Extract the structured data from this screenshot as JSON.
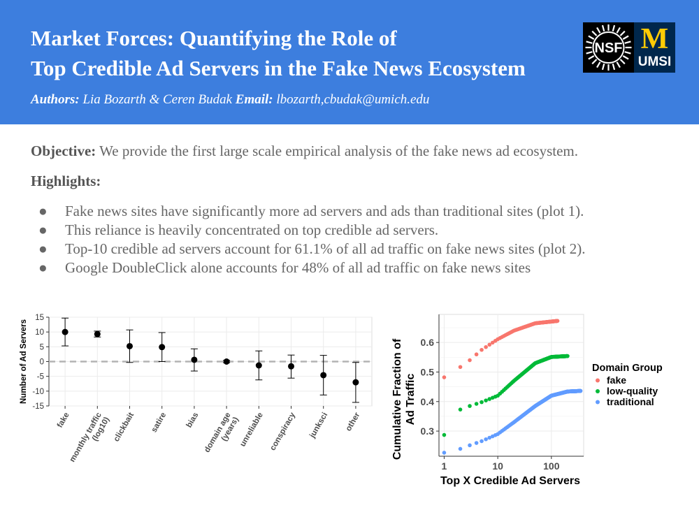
{
  "header": {
    "title_line1": "Market Forces: Quantifying the Role of",
    "title_line2": "Top Credible Ad Servers in the Fake News Ecosystem",
    "authors_label": "Authors:",
    "authors": "Lia Bozarth & Ceren Budak",
    "email_label": "Email:",
    "email": "lbozarth,cbudak@umich.edu",
    "logo_nsf_text": "NSF",
    "logo_um_letter": "M",
    "logo_um_text": "UMSI"
  },
  "objective": {
    "label": "Objective:",
    "text": "We provide the first large scale empirical analysis of the fake news ad ecosystem."
  },
  "highlights": {
    "title": "Highlights:",
    "bullet_glyph": "●",
    "items": [
      "Fake news sites have significantly more ad servers and ads than traditional sites (plot 1).",
      "This reliance is heavily concentrated on top credible ad servers.",
      "Top-10 credible ad servers account for 61.1% of all ad traffic on fake news sites (plot 2).",
      "Google DoubleClick alone accounts for 48% of all ad traffic on fake news sites"
    ]
  },
  "chart_data": [
    {
      "type": "scatter",
      "chart_kind": "coefficient plot with error bars",
      "ylabel": "Number of Ad Servers",
      "xlabel": "",
      "ylim": [
        -15,
        15
      ],
      "yticks": [
        -15,
        -10,
        -5,
        0,
        5,
        10,
        15
      ],
      "reference_line": 0,
      "grid": true,
      "categories": [
        "fake",
        "monthly traffic (log10)",
        "clickbait",
        "satire",
        "bias",
        "domain age (years)",
        "unreliable",
        "conspiracy",
        "junksci",
        "other"
      ],
      "tick_labels": [
        [
          "fake"
        ],
        [
          "monthly traffic",
          "(log10)"
        ],
        [
          "clickbait"
        ],
        [
          "satire"
        ],
        [
          "bias"
        ],
        [
          "domain age",
          "(years)"
        ],
        [
          "unreliable"
        ],
        [
          "conspiracy"
        ],
        [
          "junksci"
        ],
        [
          "other"
        ]
      ],
      "values": [
        10,
        9.3,
        5.2,
        4.9,
        0.6,
        0,
        -1.3,
        -1.6,
        -4.6,
        -7
      ],
      "lower": [
        5.3,
        8.3,
        -0.3,
        0,
        -3.2,
        -0.4,
        -6.2,
        -5.6,
        -11.3,
        -13.8
      ],
      "upper": [
        14.7,
        10.3,
        10.7,
        9.8,
        4.3,
        0.4,
        3.6,
        2.2,
        2.1,
        -0.3
      ]
    },
    {
      "type": "scatter",
      "xlabel": "Top X Credible Ad Servers",
      "ylabel_lines": [
        "Cumulative Fraction of",
        "Ad Traffic"
      ],
      "x_scale": "log",
      "xlim": [
        0.8,
        400
      ],
      "ylim": [
        0.215,
        0.695
      ],
      "xticks": [
        1,
        10,
        100
      ],
      "xtick_labels": [
        "1",
        "10",
        "100"
      ],
      "yticks": [
        0.3,
        0.4,
        0.5,
        0.6
      ],
      "ytick_labels": [
        "0.3",
        "0.4",
        "0.5",
        "0.6"
      ],
      "grid": true,
      "legend": {
        "title": "Domain Group",
        "placement": "right"
      },
      "series": [
        {
          "name": "fake",
          "color": "#f8766d",
          "start": 0.482,
          "plateau": 0.673,
          "n": 130
        },
        {
          "name": "low-quality",
          "color": "#00ba38",
          "start": 0.287,
          "plateau": 0.554,
          "n": 200
        },
        {
          "name": "traditional",
          "color": "#619cff",
          "start": 0.227,
          "plateau": 0.436,
          "n": 350
        }
      ],
      "series_anchors": [
        [
          [
            1,
            0.482
          ],
          [
            2,
            0.517
          ],
          [
            3,
            0.54
          ],
          [
            5,
            0.575
          ],
          [
            10,
            0.611
          ],
          [
            20,
            0.64
          ],
          [
            50,
            0.665
          ],
          [
            130,
            0.673
          ]
        ],
        [
          [
            1,
            0.287
          ],
          [
            2,
            0.373
          ],
          [
            3,
            0.385
          ],
          [
            5,
            0.398
          ],
          [
            10,
            0.42
          ],
          [
            20,
            0.47
          ],
          [
            50,
            0.53
          ],
          [
            100,
            0.551
          ],
          [
            200,
            0.554
          ]
        ],
        [
          [
            1,
            0.227
          ],
          [
            2,
            0.24
          ],
          [
            3,
            0.252
          ],
          [
            5,
            0.266
          ],
          [
            10,
            0.29
          ],
          [
            20,
            0.33
          ],
          [
            50,
            0.385
          ],
          [
            100,
            0.42
          ],
          [
            200,
            0.434
          ],
          [
            350,
            0.436
          ]
        ]
      ]
    }
  ]
}
